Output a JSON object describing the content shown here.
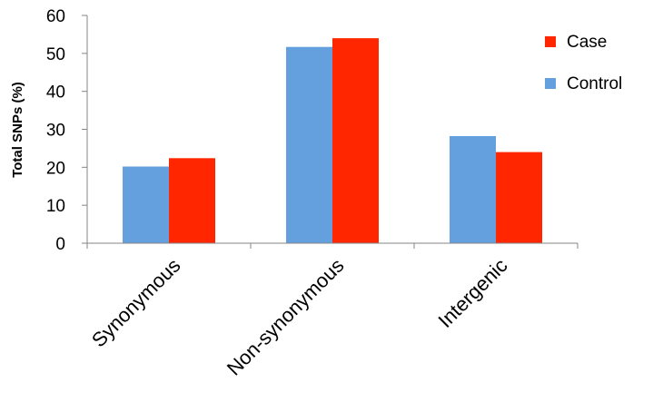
{
  "chart_data": {
    "type": "bar",
    "title": "",
    "xlabel": "",
    "ylabel": "Total SNPs (%)",
    "ylim": [
      0,
      60
    ],
    "yticks": [
      0,
      10,
      20,
      30,
      40,
      50,
      60
    ],
    "categories": [
      "Synonymous",
      "Non-synonymous",
      "Intergenic"
    ],
    "series": [
      {
        "name": "Control",
        "color": "#65A0DE",
        "values": [
          20.2,
          51.7,
          28.2
        ]
      },
      {
        "name": "Case",
        "color": "#FF2600",
        "values": [
          22.4,
          54.0,
          24.0
        ]
      }
    ],
    "legend": {
      "position": "top-right",
      "entries": [
        {
          "name": "Case",
          "color": "#FF2600"
        },
        {
          "name": "Control",
          "color": "#65A0DE"
        }
      ]
    },
    "grid": false,
    "category_label_rotation": -45
  }
}
